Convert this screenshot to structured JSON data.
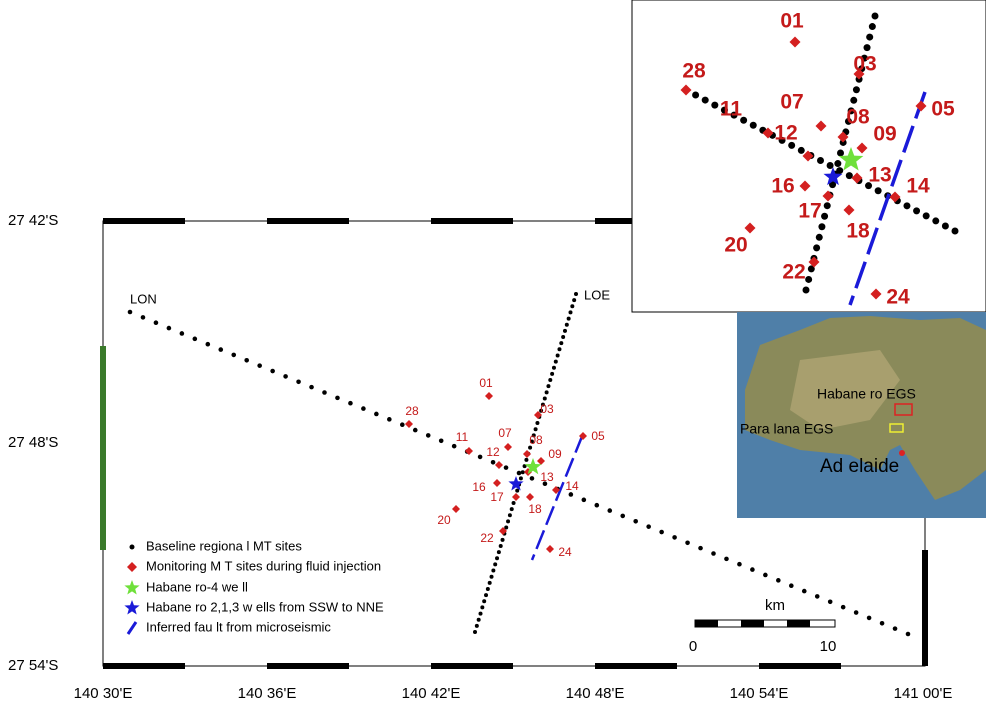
{
  "map": {
    "lat_labels": [
      "27 42'S",
      "27 48'S",
      "27 54'S"
    ],
    "lon_labels": [
      "140 30'E",
      "140 36'E",
      "140 42'E",
      "140 48'E",
      "140 54'E",
      "141 00'E"
    ],
    "line_labels": [
      "LON",
      "LOE"
    ],
    "sites": [
      "01",
      "03",
      "05",
      "07",
      "08",
      "09",
      "11",
      "12",
      "13",
      "14",
      "16",
      "17",
      "18",
      "20",
      "22",
      "24",
      "28"
    ]
  },
  "legend": [
    "Baseline regiona l MT sites",
    "Monitoring M T sites during fluid injection",
    "Habane ro-4 we ll",
    "Habane ro 2,1,3 w ells from SSW to NNE",
    "Inferred fau lt from microseismic"
  ],
  "scale_bar": {
    "unit": "km",
    "ticks": [
      "0",
      "10"
    ]
  },
  "inset_zoom": {
    "sites": [
      "01",
      "03",
      "05",
      "07",
      "08",
      "09",
      "11",
      "12",
      "13",
      "14",
      "16",
      "17",
      "18",
      "20",
      "22",
      "24",
      "28"
    ]
  },
  "inset_australia": {
    "labels": [
      "Habane ro EGS",
      "Para lana EGS",
      "Ad elaide"
    ]
  }
}
